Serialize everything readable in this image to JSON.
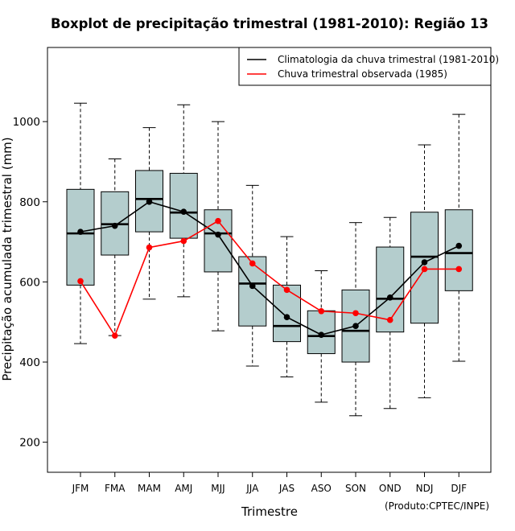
{
  "chart_data": {
    "type": "boxplot",
    "title": "Boxplot de precipitação trimestral (1981-2010): Região 13",
    "xlabel": "Trimestre",
    "ylabel": "Precipitação acumulada trimestral (mm)",
    "credit": "(Produto:CPTEC/INPE)",
    "ylim": [
      125,
      1185
    ],
    "yticks": [
      200,
      400,
      600,
      800,
      1000
    ],
    "categories": [
      "JFM",
      "FMA",
      "MAM",
      "AMJ",
      "MJJ",
      "JJA",
      "JAS",
      "ASO",
      "SON",
      "OND",
      "NDJ",
      "DJF"
    ],
    "boxes": [
      {
        "min": 446,
        "q1": 592,
        "median": 721,
        "q3": 831,
        "max": 1046
      },
      {
        "min": 466,
        "q1": 667,
        "median": 744,
        "q3": 825,
        "max": 907
      },
      {
        "min": 557,
        "q1": 725,
        "median": 807,
        "q3": 878,
        "max": 985
      },
      {
        "min": 563,
        "q1": 709,
        "median": 773,
        "q3": 871,
        "max": 1042
      },
      {
        "min": 478,
        "q1": 625,
        "median": 721,
        "q3": 780,
        "max": 1000
      },
      {
        "min": 390,
        "q1": 490,
        "median": 596,
        "q3": 663,
        "max": 841
      },
      {
        "min": 363,
        "q1": 451,
        "median": 490,
        "q3": 592,
        "max": 713
      },
      {
        "min": 300,
        "q1": 421,
        "median": 465,
        "q3": 528,
        "max": 628
      },
      {
        "min": 266,
        "q1": 400,
        "median": 478,
        "q3": 580,
        "max": 748
      },
      {
        "min": 284,
        "q1": 475,
        "median": 558,
        "q3": 687,
        "max": 761
      },
      {
        "min": 311,
        "q1": 497,
        "median": 663,
        "q3": 774,
        "max": 942
      },
      {
        "min": 402,
        "q1": 578,
        "median": 672,
        "q3": 780,
        "max": 1018
      }
    ],
    "series": [
      {
        "name": "Climatologia da chuva trimestral (1981-2010)",
        "color": "#000000",
        "values": [
          725,
          740,
          800,
          775,
          718,
          590,
          512,
          468,
          490,
          561,
          649,
          690
        ]
      },
      {
        "name": "Chuva trimestral observada (1985)",
        "color": "#ff0000",
        "values": [
          602,
          466,
          686,
          702,
          752,
          646,
          580,
          527,
          522,
          505,
          632,
          632
        ]
      }
    ],
    "legend_position": "top-right",
    "box_fill": "#b4cdcd"
  }
}
